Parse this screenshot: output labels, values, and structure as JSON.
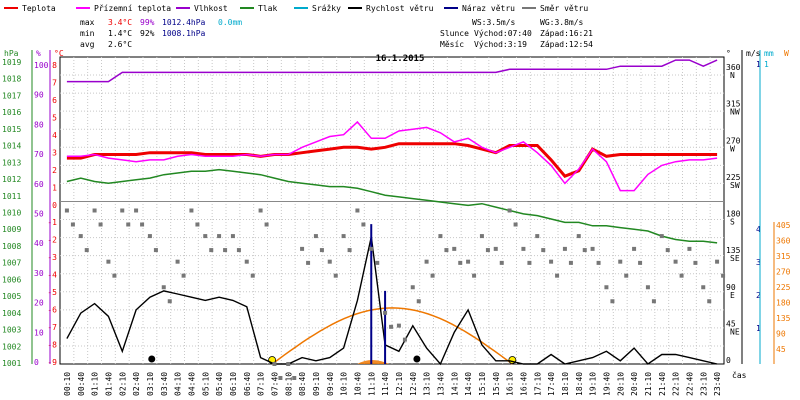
{
  "header": {
    "legend": [
      {
        "label": "Teplota",
        "color": "#ee0000"
      },
      {
        "label": "Přízemní teplota",
        "color": "#ff00ff"
      },
      {
        "label": "Vlhkost",
        "color": "#9900cc"
      },
      {
        "label": "Tlak",
        "color": "#228822"
      },
      {
        "label": "Srážky",
        "color": "#00aacc"
      },
      {
        "label": "Rychlost větru",
        "color": "#000000"
      },
      {
        "label": "Náraz větru",
        "color": "#000088"
      },
      {
        "label": "Směr větru",
        "color": "#777777"
      }
    ],
    "stats": {
      "max": {
        "label": "max",
        "temp": "3.4°C",
        "hum": "99%",
        "press": "1012.4hPa",
        "rain": "0.0mm"
      },
      "min": {
        "label": "min",
        "temp": "1.4°C",
        "hum": "92%",
        "press": "1008.1hPa"
      },
      "avg": {
        "label": "avg",
        "temp": "2.6°C"
      }
    },
    "info": {
      "ws": "WS:3.5m/s",
      "wg": "WG:3.8m/s",
      "sun_label": "Slunce",
      "sun_rise": "Východ:07:40",
      "sun_set": "Západ:16:21",
      "moon_label": "Měsíc",
      "moon_rise": "Východ:3:19",
      "moon_set": "Západ:12:54"
    }
  },
  "chart_data": {
    "type": "line",
    "title": "16.1.2015",
    "x_times": [
      "00:10",
      "00:40",
      "01:10",
      "01:40",
      "02:10",
      "02:40",
      "03:10",
      "03:40",
      "04:10",
      "04:40",
      "05:10",
      "05:40",
      "06:10",
      "06:40",
      "07:10",
      "07:40",
      "08:10",
      "08:40",
      "09:10",
      "09:40",
      "10:10",
      "10:40",
      "11:10",
      "11:40",
      "12:10",
      "12:40",
      "13:10",
      "13:40",
      "14:10",
      "14:40",
      "15:10",
      "15:40",
      "16:10",
      "16:40",
      "17:10",
      "17:40",
      "18:10",
      "18:40",
      "19:10",
      "19:40",
      "20:10",
      "20:40",
      "21:10",
      "21:40",
      "22:10",
      "22:40",
      "23:10",
      "23:40"
    ],
    "xlabel": "čas",
    "axes": {
      "hPa": {
        "label": "hPa",
        "ticks": [
          "1019",
          "1018",
          "1017",
          "1016",
          "1015",
          "1014",
          "1013",
          "1012",
          "1011",
          "1010",
          "1009",
          "1008",
          "1007",
          "1006",
          "1005",
          "1004",
          "1003",
          "1002",
          "1001"
        ],
        "range": [
          1001,
          1019
        ]
      },
      "percent": {
        "label": "%",
        "ticks": [
          "100",
          "90",
          "80",
          "70",
          "60",
          "50",
          "40",
          "30",
          "20",
          "10",
          "0"
        ],
        "range": [
          0,
          100
        ]
      },
      "celsius": {
        "label": "°C",
        "ticks": [
          "8",
          "7",
          "6",
          "5",
          "4",
          "3",
          "2",
          "1",
          "0",
          "-1",
          "-2",
          "-3",
          "-4",
          "-5",
          "-6",
          "-7",
          "-8",
          "-9"
        ],
        "range": [
          -9,
          8
        ]
      },
      "direction": {
        "label": "°",
        "ticks": [
          "360 N",
          "315 NW",
          "270 W",
          "225 SW",
          "180 S",
          "135 SE",
          "90 E",
          "45 NE",
          "0"
        ]
      },
      "wind": {
        "label": "m/s",
        "ticks": [
          "1",
          "4",
          "3",
          "2",
          "1"
        ]
      },
      "rain": {
        "label": "mm",
        "ticks": [
          "1"
        ]
      },
      "radiation": {
        "label": "W",
        "ticks": [
          "405",
          "360",
          "315",
          "270",
          "225",
          "180",
          "135",
          "90",
          "45"
        ]
      }
    },
    "series": [
      {
        "name": "Teplota",
        "unit": "°C",
        "color": "#ee0000",
        "values": [
          2.4,
          2.4,
          2.6,
          2.6,
          2.6,
          2.6,
          2.7,
          2.7,
          2.7,
          2.7,
          2.6,
          2.6,
          2.6,
          2.6,
          2.5,
          2.6,
          2.6,
          2.7,
          2.8,
          2.9,
          3.0,
          3.0,
          2.9,
          3.0,
          3.2,
          3.2,
          3.2,
          3.2,
          3.2,
          3.1,
          2.9,
          2.7,
          3.1,
          3.1,
          3.1,
          2.3,
          1.4,
          1.7,
          2.9,
          2.5,
          2.6,
          2.6,
          2.6,
          2.6,
          2.6,
          2.6,
          2.6,
          2.6
        ]
      },
      {
        "name": "Přízemní teplota",
        "unit": "°C",
        "color": "#ff00ff",
        "values": [
          2.5,
          2.5,
          2.6,
          2.4,
          2.3,
          2.2,
          2.3,
          2.3,
          2.5,
          2.6,
          2.5,
          2.5,
          2.5,
          2.6,
          2.5,
          2.6,
          2.6,
          3.0,
          3.3,
          3.6,
          3.7,
          4.4,
          3.5,
          3.5,
          3.9,
          4.0,
          4.1,
          3.8,
          3.3,
          3.5,
          3.0,
          2.7,
          3.0,
          3.3,
          2.7,
          2.0,
          1.0,
          1.8,
          2.9,
          2.2,
          0.6,
          0.6,
          1.5,
          2.0,
          2.2,
          2.3,
          2.3,
          2.4
        ]
      },
      {
        "name": "Vlhkost",
        "unit": "%",
        "color": "#9900cc",
        "values": [
          92,
          92,
          92,
          92,
          95,
          95,
          95,
          95,
          95,
          95,
          95,
          95,
          95,
          95,
          95,
          95,
          95,
          95,
          95,
          95,
          95,
          95,
          95,
          95,
          95,
          95,
          95,
          95,
          95,
          95,
          95,
          95,
          96,
          96,
          96,
          96,
          96,
          96,
          96,
          96,
          97,
          97,
          97,
          97,
          99,
          99,
          97,
          99
        ]
      },
      {
        "name": "Tlak",
        "unit": "hPa",
        "color": "#228822",
        "values": [
          1011.7,
          1011.9,
          1011.7,
          1011.6,
          1011.7,
          1011.8,
          1011.9,
          1012.1,
          1012.2,
          1012.3,
          1012.3,
          1012.4,
          1012.3,
          1012.2,
          1012.1,
          1011.9,
          1011.7,
          1011.6,
          1011.5,
          1011.4,
          1011.4,
          1011.3,
          1011.1,
          1010.9,
          1010.8,
          1010.7,
          1010.6,
          1010.5,
          1010.4,
          1010.3,
          1010.4,
          1010.2,
          1010.0,
          1009.8,
          1009.7,
          1009.5,
          1009.3,
          1009.3,
          1009.1,
          1009.1,
          1009.0,
          1008.9,
          1008.8,
          1008.5,
          1008.3,
          1008.2,
          1008.2,
          1008.1
        ]
      },
      {
        "name": "Rychlost větru",
        "unit": "m/s",
        "color": "#000000",
        "values": [
          0.8,
          1.6,
          1.9,
          1.5,
          0.4,
          1.7,
          2.1,
          2.3,
          2.2,
          2.1,
          2.0,
          2.1,
          2.0,
          1.8,
          0.2,
          0.0,
          0.0,
          0.2,
          0.1,
          0.2,
          0.5,
          2.0,
          4.0,
          0.6,
          0.4,
          1.2,
          0.5,
          0.0,
          1.0,
          1.7,
          0.6,
          0.1,
          0.1,
          0.0,
          0.0,
          0.3,
          0.0,
          0.1,
          0.2,
          0.4,
          0.1,
          0.5,
          0.0,
          0.3,
          0.3,
          0.2,
          0.1,
          0.0
        ]
      },
      {
        "name": "Náraz větru",
        "unit": "m/s",
        "color": "#000088",
        "values": [
          0,
          0,
          0,
          0,
          0,
          0,
          0,
          0,
          0,
          0,
          0,
          0,
          0,
          0,
          0,
          0,
          0,
          0,
          0,
          0,
          0,
          0,
          4.4,
          2.3,
          0,
          0,
          0,
          0,
          0,
          0,
          0,
          0,
          0,
          0,
          0,
          0,
          0,
          0,
          0,
          0,
          0,
          0,
          0,
          0,
          0,
          0,
          0,
          0
        ]
      },
      {
        "name": "Směr větru",
        "unit": "°",
        "color": "#777777",
        "values": [
          180,
          150,
          180,
          120,
          180,
          180,
          150,
          90,
          120,
          180,
          150,
          150,
          150,
          120,
          180,
          0,
          0,
          135,
          150,
          120,
          150,
          180,
          135,
          60,
          45,
          90,
          120,
          150,
          135,
          120,
          150,
          135,
          180,
          135,
          150,
          120,
          135,
          150,
          135,
          90,
          120,
          135,
          90,
          150,
          120,
          135,
          90,
          120
        ]
      }
    ],
    "solar": {
      "name": "Sluneční záření",
      "unit": "W",
      "color": "#ee7700",
      "rise": "07:40",
      "set": "16:21",
      "peak": 160
    },
    "rain": {
      "unit": "mm",
      "color": "#ee7700"
    }
  }
}
